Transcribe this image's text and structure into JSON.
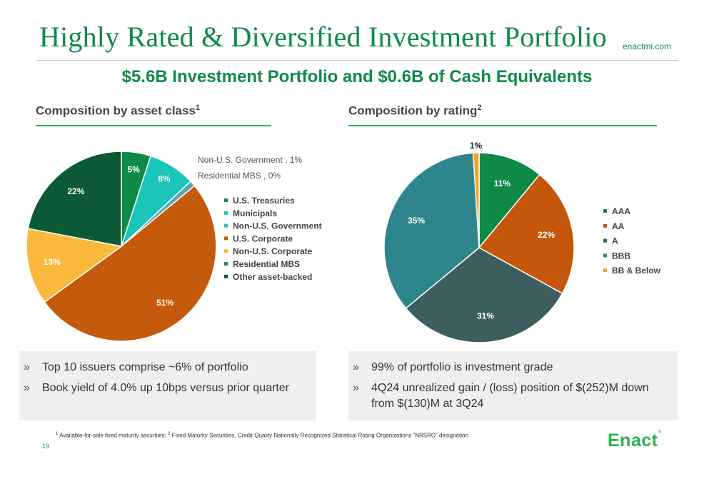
{
  "title": "Highly Rated & Diversified Investment Portfolio",
  "site": "enactmi.com",
  "subtitle": "$5.6B Investment Portfolio and $0.6B of Cash Equivalents",
  "left": {
    "heading": "Composition by asset class",
    "heading_sup": "1",
    "bullets": [
      "Top 10 issuers comprise ~6% of portfolio",
      "Book yield of 4.0% up 10bps versus prior quarter"
    ]
  },
  "right": {
    "heading": "Composition by rating",
    "heading_sup": "2",
    "bullets": [
      "99% of portfolio is investment grade",
      "4Q24 unrealized gain / (loss) position of $(252)M down from $(130)M at 3Q24"
    ]
  },
  "bullet_mark": "»",
  "footnote": {
    "sup1": "1",
    "text1": " Available-for-sale fixed maturity securities; ",
    "sup2": "2",
    "text2": " Fixed Maturity Securities, Credit Quality Nationally Recognized Statistical Rating Organizations “NRSRO” designation"
  },
  "page_number": "19",
  "logo": {
    "text": "Enact",
    "reg": "®"
  },
  "colors": {
    "brand_green": "#0f8a4a",
    "accent_green": "#2bb34b",
    "panel_bg": "#efefef"
  },
  "chart_data": [
    {
      "type": "pie",
      "title": "Composition by asset class",
      "slices": [
        {
          "name": "U.S. Treasuries",
          "value": 5,
          "label": "5%",
          "color": "#0c8a46",
          "label_color": "#ffffff"
        },
        {
          "name": "Municipals",
          "value": 8,
          "label": "8%",
          "color": "#19c6b9",
          "label_color": "#ffffff"
        },
        {
          "name": "Non-U.S. Government",
          "value": 1,
          "label": "",
          "color": "#52a8b8",
          "label_color": "#ffffff"
        },
        {
          "name": "Residential MBS",
          "value": 0,
          "label": "",
          "color": "#3a7d7d",
          "label_color": "#ffffff"
        },
        {
          "name": "U.S. Corporate",
          "value": 51,
          "label": "51%",
          "color": "#c55a0c",
          "label_color": "#ffffff"
        },
        {
          "name": "Non-U.S. Corporate",
          "value": 13,
          "label": "13%",
          "color": "#fbb93c",
          "label_color": "#ffffff"
        },
        {
          "name": "Other asset-backed",
          "value": 22,
          "label": "22%",
          "color": "#0c5a34",
          "label_color": "#ffffff"
        }
      ],
      "callouts": [
        "Non-U.S. Government , 1%",
        "Residential MBS , 0%"
      ],
      "legend": [
        {
          "name": "U.S. Treasuries",
          "color": "#0c8a46"
        },
        {
          "name": "Municipals",
          "color": "#19c6b9"
        },
        {
          "name": "Non-U.S. Government",
          "color": "#52a8b8"
        },
        {
          "name": "U.S. Corporate",
          "color": "#c55a0c"
        },
        {
          "name": "Non-U.S. Corporate",
          "color": "#fbb93c"
        },
        {
          "name": "Residential MBS",
          "color": "#3a7d7d"
        },
        {
          "name": "Other asset-backed",
          "color": "#0c5a34"
        }
      ],
      "legend_position": "right"
    },
    {
      "type": "pie",
      "title": "Composition by rating",
      "slices": [
        {
          "name": "AAA",
          "value": 11,
          "label": "11%",
          "color": "#0f8a46",
          "label_color": "#ffffff"
        },
        {
          "name": "AA",
          "value": 22,
          "label": "22%",
          "color": "#c4570c",
          "label_color": "#ffffff"
        },
        {
          "name": "A",
          "value": 31,
          "label": "31%",
          "color": "#3c5e5e",
          "label_color": "#ffffff"
        },
        {
          "name": "BBB",
          "value": 35,
          "label": "35%",
          "color": "#2f858c",
          "label_color": "#ffffff"
        },
        {
          "name": "BB & Below",
          "value": 1,
          "label": "1%",
          "color": "#f4a127",
          "label_color": "#222222"
        }
      ],
      "legend": [
        {
          "name": "AAA",
          "color": "#0f8a46"
        },
        {
          "name": "AA",
          "color": "#c4570c"
        },
        {
          "name": "A",
          "color": "#3c5e5e"
        },
        {
          "name": "BBB",
          "color": "#2f858c"
        },
        {
          "name": "BB & Below",
          "color": "#f4a127"
        }
      ],
      "legend_position": "right"
    }
  ]
}
